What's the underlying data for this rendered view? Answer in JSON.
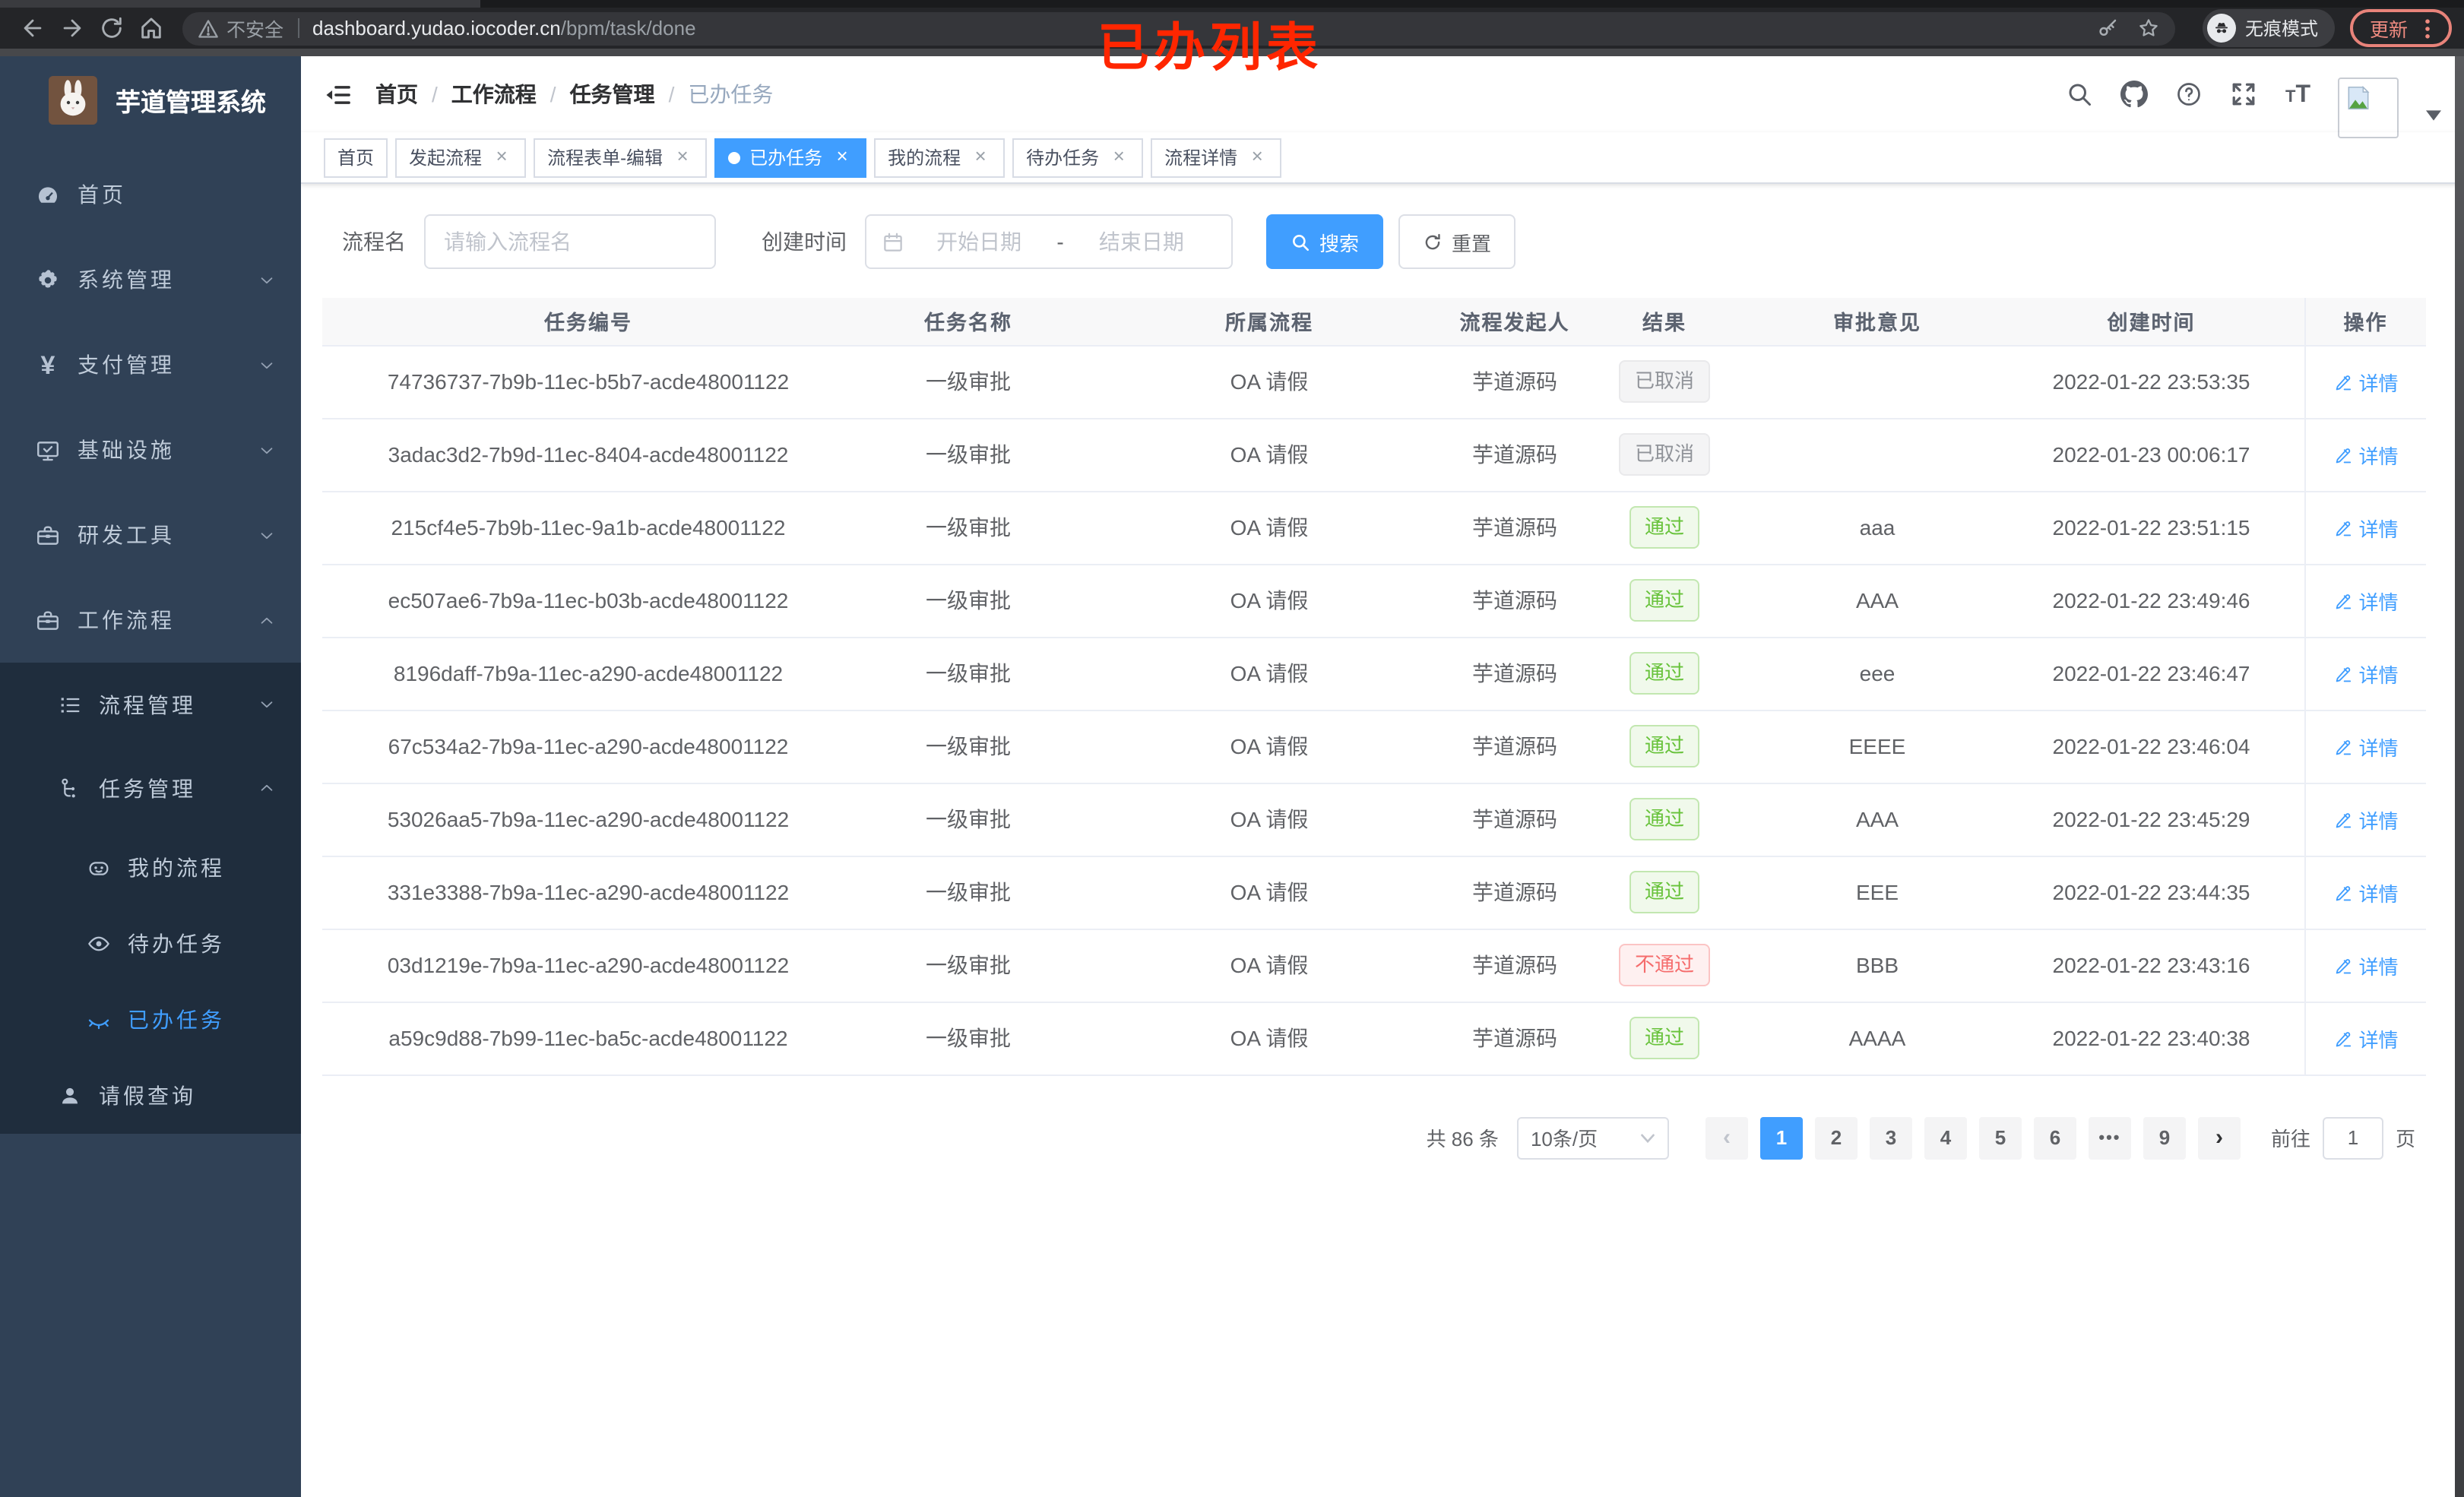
{
  "browser": {
    "security_label": "不安全",
    "url_domain": "dashboard.yudao.iocoder.cn",
    "url_path": "/bpm/task/done",
    "incognito_label": "无痕模式",
    "update_label": "更新"
  },
  "annotation": {
    "text": "已办列表",
    "color": "#ff2600"
  },
  "colors": {
    "accent": "#409eff",
    "success": "#67c23a",
    "danger": "#f56c6c",
    "info": "#909399",
    "sidebar_bg": "#304156",
    "submenu_bg": "#1f2d3d"
  },
  "sidebar": {
    "title": "芋道管理系统",
    "menu": [
      {
        "label": "首页",
        "icon": "dashboard-icon",
        "level": "lvl1",
        "subbg": false,
        "chevron": null,
        "active": false
      },
      {
        "label": "系统管理",
        "icon": "gear-icon",
        "level": "lvl1",
        "subbg": false,
        "chevron": "down",
        "active": false
      },
      {
        "label": "支付管理",
        "icon": "yen-icon",
        "level": "lvl1",
        "subbg": false,
        "chevron": "down",
        "active": false
      },
      {
        "label": "基础设施",
        "icon": "monitor-icon",
        "level": "lvl1",
        "subbg": false,
        "chevron": "down",
        "active": false
      },
      {
        "label": "研发工具",
        "icon": "toolbox-icon",
        "level": "lvl1",
        "subbg": false,
        "chevron": "down",
        "active": false
      },
      {
        "label": "工作流程",
        "icon": "briefcase-icon",
        "level": "lvl1",
        "subbg": false,
        "chevron": "up",
        "active": false
      },
      {
        "label": "流程管理",
        "icon": "list-tree-icon",
        "level": "lvl2",
        "subbg": true,
        "chevron": "down",
        "active": false
      },
      {
        "label": "任务管理",
        "icon": "flow-icon",
        "level": "lvl2",
        "subbg": true,
        "chevron": "up",
        "active": false
      },
      {
        "label": "我的流程",
        "icon": "robot-face-icon",
        "level": "lvl3",
        "subbg": true,
        "chevron": null,
        "active": false
      },
      {
        "label": "待办任务",
        "icon": "eye-open-icon",
        "level": "lvl3",
        "subbg": true,
        "chevron": null,
        "active": false
      },
      {
        "label": "已办任务",
        "icon": "eye-closed-icon",
        "level": "lvl3",
        "subbg": true,
        "chevron": null,
        "active": true
      },
      {
        "label": "请假查询",
        "icon": "user-icon",
        "level": "lvl2s",
        "subbg": true,
        "chevron": null,
        "active": false
      }
    ]
  },
  "breadcrumb": [
    "首页",
    "工作流程",
    "任务管理",
    "已办任务"
  ],
  "tags": [
    {
      "label": "首页",
      "closable": false,
      "active": false
    },
    {
      "label": "发起流程",
      "closable": true,
      "active": false
    },
    {
      "label": "流程表单-编辑",
      "closable": true,
      "active": false
    },
    {
      "label": "已办任务",
      "closable": true,
      "active": true
    },
    {
      "label": "我的流程",
      "closable": true,
      "active": false
    },
    {
      "label": "待办任务",
      "closable": true,
      "active": false
    },
    {
      "label": "流程详情",
      "closable": true,
      "active": false
    }
  ],
  "filters": {
    "name_label": "流程名",
    "name_placeholder": "请输入流程名",
    "time_label": "创建时间",
    "start_placeholder": "开始日期",
    "range_separator": "-",
    "end_placeholder": "结束日期",
    "search_label": "搜索",
    "reset_label": "重置"
  },
  "table": {
    "headers": [
      "任务编号",
      "任务名称",
      "所属流程",
      "流程发起人",
      "结果",
      "审批意见",
      "创建时间",
      "操作"
    ],
    "action_label": "详情",
    "rows": [
      {
        "id": "74736737-7b9b-11ec-b5b7-acde48001122",
        "name": "一级审批",
        "process": "OA 请假",
        "starter": "芋道源码",
        "result": "已取消",
        "result_type": "info",
        "opinion": "",
        "created": "2022-01-22 23:53:35"
      },
      {
        "id": "3adac3d2-7b9d-11ec-8404-acde48001122",
        "name": "一级审批",
        "process": "OA 请假",
        "starter": "芋道源码",
        "result": "已取消",
        "result_type": "info",
        "opinion": "",
        "created": "2022-01-23 00:06:17"
      },
      {
        "id": "215cf4e5-7b9b-11ec-9a1b-acde48001122",
        "name": "一级审批",
        "process": "OA 请假",
        "starter": "芋道源码",
        "result": "通过",
        "result_type": "success",
        "opinion": "aaa",
        "created": "2022-01-22 23:51:15"
      },
      {
        "id": "ec507ae6-7b9a-11ec-b03b-acde48001122",
        "name": "一级审批",
        "process": "OA 请假",
        "starter": "芋道源码",
        "result": "通过",
        "result_type": "success",
        "opinion": "AAA",
        "created": "2022-01-22 23:49:46"
      },
      {
        "id": "8196daff-7b9a-11ec-a290-acde48001122",
        "name": "一级审批",
        "process": "OA 请假",
        "starter": "芋道源码",
        "result": "通过",
        "result_type": "success",
        "opinion": "eee",
        "created": "2022-01-22 23:46:47"
      },
      {
        "id": "67c534a2-7b9a-11ec-a290-acde48001122",
        "name": "一级审批",
        "process": "OA 请假",
        "starter": "芋道源码",
        "result": "通过",
        "result_type": "success",
        "opinion": "EEEE",
        "created": "2022-01-22 23:46:04"
      },
      {
        "id": "53026aa5-7b9a-11ec-a290-acde48001122",
        "name": "一级审批",
        "process": "OA 请假",
        "starter": "芋道源码",
        "result": "通过",
        "result_type": "success",
        "opinion": "AAA",
        "created": "2022-01-22 23:45:29"
      },
      {
        "id": "331e3388-7b9a-11ec-a290-acde48001122",
        "name": "一级审批",
        "process": "OA 请假",
        "starter": "芋道源码",
        "result": "通过",
        "result_type": "success",
        "opinion": "EEE",
        "created": "2022-01-22 23:44:35"
      },
      {
        "id": "03d1219e-7b9a-11ec-a290-acde48001122",
        "name": "一级审批",
        "process": "OA 请假",
        "starter": "芋道源码",
        "result": "不通过",
        "result_type": "danger",
        "opinion": "BBB",
        "created": "2022-01-22 23:43:16"
      },
      {
        "id": "a59c9d88-7b99-11ec-ba5c-acde48001122",
        "name": "一级审批",
        "process": "OA 请假",
        "starter": "芋道源码",
        "result": "通过",
        "result_type": "success",
        "opinion": "AAAA",
        "created": "2022-01-22 23:40:38"
      }
    ]
  },
  "pagination": {
    "total_text": "共 86 条",
    "page_size": "10条/页",
    "items": [
      {
        "type": "prev"
      },
      {
        "type": "page",
        "label": "1",
        "active": true
      },
      {
        "type": "page",
        "label": "2",
        "active": false
      },
      {
        "type": "page",
        "label": "3",
        "active": false
      },
      {
        "type": "page",
        "label": "4",
        "active": false
      },
      {
        "type": "page",
        "label": "5",
        "active": false
      },
      {
        "type": "page",
        "label": "6",
        "active": false
      },
      {
        "type": "ellipsis",
        "label": "•••"
      },
      {
        "type": "page",
        "label": "9",
        "active": false
      },
      {
        "type": "next"
      }
    ],
    "jump_prefix": "前往",
    "jump_value": "1",
    "jump_suffix": "页"
  }
}
